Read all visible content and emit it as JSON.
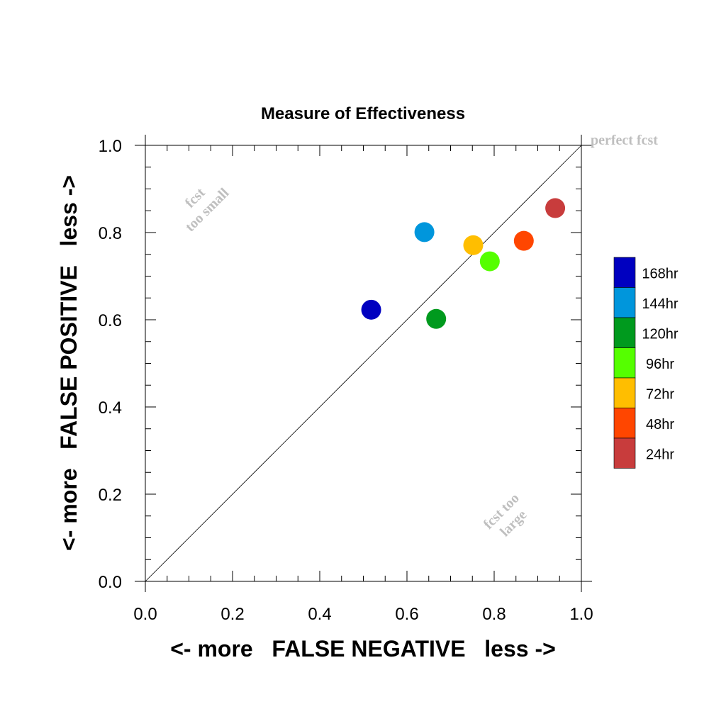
{
  "chart_data": {
    "type": "scatter",
    "title": "Measure of Effectiveness",
    "xlabel": "<- more   FALSE NEGATIVE   less ->",
    "ylabel": "<- more   FALSE POSITIVE   less ->",
    "xlim": [
      0.0,
      1.0
    ],
    "ylim": [
      0.0,
      1.0
    ],
    "xticks": [
      "0.0",
      "0.2",
      "0.4",
      "0.6",
      "0.8",
      "1.0"
    ],
    "yticks": [
      "0.0",
      "0.2",
      "0.4",
      "0.6",
      "0.8",
      "1.0"
    ],
    "grid": false,
    "reference_line": {
      "from": [
        0,
        0
      ],
      "to": [
        1,
        1
      ],
      "label": "perfect fcst"
    },
    "annotations": {
      "upper_left": [
        "fcst",
        "too small"
      ],
      "lower_right": [
        "fcst too",
        "large"
      ]
    },
    "legend_position": "right",
    "series": [
      {
        "name": "168hr",
        "color": "#0000c0",
        "x": 0.518,
        "y": 0.623
      },
      {
        "name": "144hr",
        "color": "#0096dc",
        "x": 0.64,
        "y": 0.801
      },
      {
        "name": "120hr",
        "color": "#009a1e",
        "x": 0.667,
        "y": 0.602
      },
      {
        "name": "96hr",
        "color": "#55ff00",
        "x": 0.79,
        "y": 0.734
      },
      {
        "name": "72hr",
        "color": "#ffbe00",
        "x": 0.752,
        "y": 0.771
      },
      {
        "name": "48hr",
        "color": "#ff4600",
        "x": 0.868,
        "y": 0.781
      },
      {
        "name": "24hr",
        "color": "#c83c3c",
        "x": 0.94,
        "y": 0.856
      }
    ]
  }
}
